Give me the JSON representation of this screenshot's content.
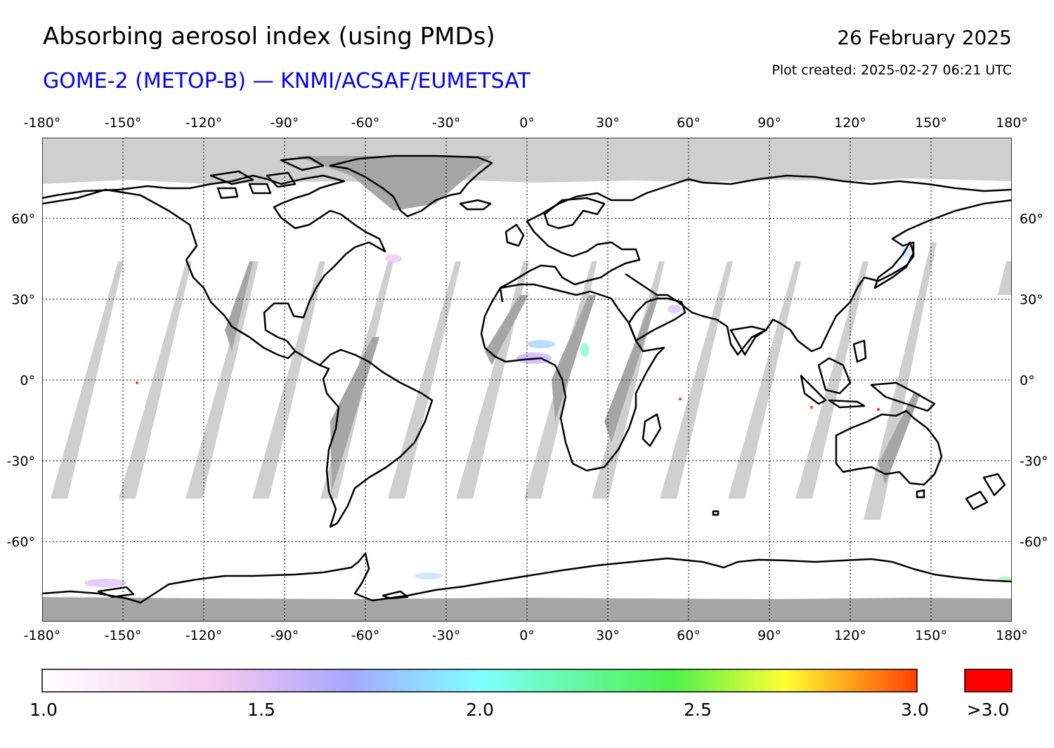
{
  "header": {
    "title": "Absorbing aerosol index (using PMDs)",
    "subtitle": "GOME-2 (METOP-B) — KNMI/ACSAF/EUMETSAT",
    "date": "26 February 2025",
    "plot_created": "Plot created: 2025-02-27 06:21 UTC"
  },
  "map": {
    "projection": "equirectangular",
    "lon_range": [
      -180,
      180
    ],
    "lat_range": [
      -90,
      90
    ],
    "gridlines": true,
    "lon_ticks": [
      "-180°",
      "-150°",
      "-120°",
      "-90°",
      "-60°",
      "-30°",
      "0°",
      "30°",
      "60°",
      "90°",
      "120°",
      "150°",
      "180°"
    ],
    "lat_ticks": [
      "60°",
      "30°",
      "0°",
      "-30°",
      "-60°"
    ],
    "no_data_color": "#cfcfcf",
    "polar_night_color": "#a6a6a6",
    "ocean_color": "#ffffff"
  },
  "colorbar": {
    "labels": [
      "1.0",
      "1.5",
      "2.0",
      "2.5",
      "3.0"
    ],
    "overflow_label": ">3.0",
    "overflow_color": "#ff0000",
    "colors": [
      "#ffffff",
      "#f5c8f0",
      "#a7a7ff",
      "#7fffff",
      "#4cf24c",
      "#ffff33",
      "#ff4000"
    ]
  }
}
